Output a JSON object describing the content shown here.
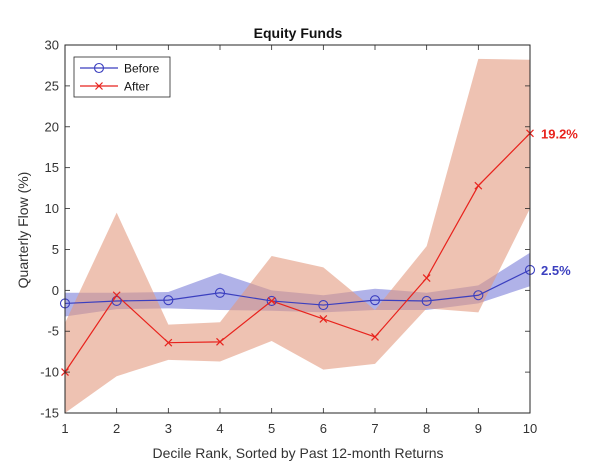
{
  "chart_data": {
    "type": "line",
    "title": "Equity Funds",
    "xlabel": "Decile Rank, Sorted by Past 12-month Returns",
    "ylabel": "Quarterly Flow (%)",
    "xlim": [
      1,
      10
    ],
    "ylim": [
      -15,
      30
    ],
    "x": [
      1,
      2,
      3,
      4,
      5,
      6,
      7,
      8,
      9,
      10
    ],
    "x_ticks": [
      "1",
      "2",
      "3",
      "4",
      "5",
      "6",
      "7",
      "8",
      "9",
      "10"
    ],
    "y_ticks": [
      "-15",
      "-10",
      "-5",
      "0",
      "5",
      "10",
      "15",
      "20",
      "25",
      "30"
    ],
    "y_tick_values": [
      -15,
      -10,
      -5,
      0,
      5,
      10,
      15,
      20,
      25,
      30
    ],
    "grid": false,
    "legend_position": "top-left",
    "series": [
      {
        "name": "Before",
        "color": "#3b3fbf",
        "band_color": "#6f73d6",
        "marker": "circle",
        "values": [
          -1.6,
          -1.3,
          -1.2,
          -0.3,
          -1.3,
          -1.8,
          -1.2,
          -1.3,
          -0.6,
          2.5
        ],
        "band_upper": [
          -0.3,
          -0.3,
          -0.2,
          2.1,
          0.0,
          -0.6,
          0.2,
          -0.3,
          0.6,
          4.6
        ],
        "band_lower": [
          -3.2,
          -2.3,
          -2.2,
          -2.4,
          -2.5,
          -2.7,
          -2.4,
          -2.4,
          -1.6,
          0.5
        ]
      },
      {
        "name": "After",
        "color": "#e8231d",
        "band_color": "#e39a7e",
        "marker": "x",
        "values": [
          -10.0,
          -0.6,
          -6.4,
          -6.3,
          -1.3,
          -3.5,
          -5.7,
          1.5,
          12.8,
          19.2
        ],
        "band_upper": [
          -4.0,
          9.5,
          -4.2,
          -3.9,
          4.2,
          2.8,
          -2.4,
          5.4,
          28.3,
          28.2
        ],
        "band_lower": [
          -15.0,
          -10.5,
          -8.5,
          -8.7,
          -6.2,
          -9.7,
          -9.0,
          -2.2,
          -2.7,
          10.0
        ]
      }
    ],
    "end_labels": [
      {
        "series": "After",
        "text": "19.2%"
      },
      {
        "series": "Before",
        "text": "2.5%"
      }
    ]
  }
}
